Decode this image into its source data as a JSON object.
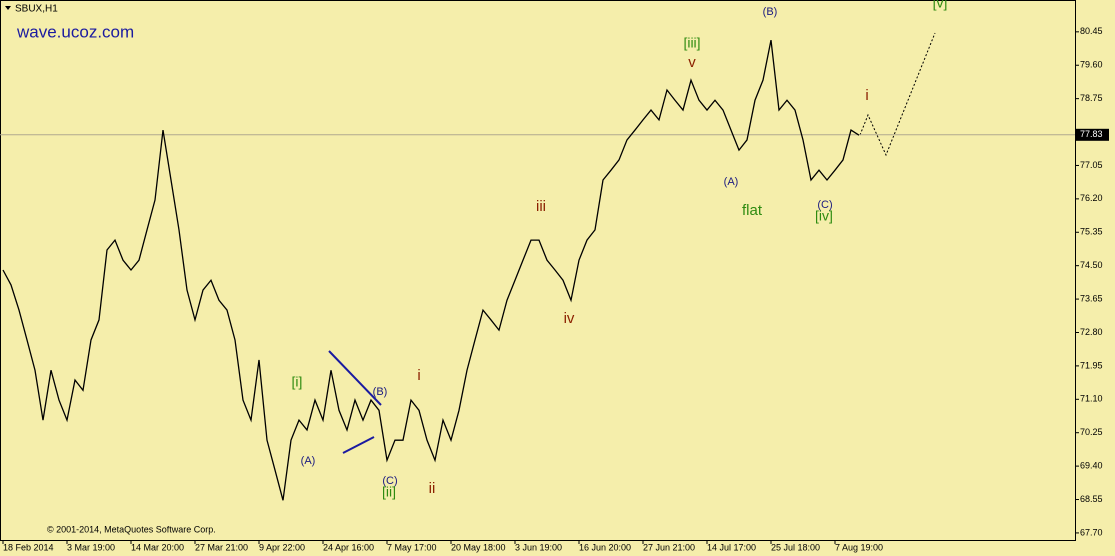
{
  "chart_data": {
    "type": "line",
    "title": "SBUX,H1",
    "watermark": "wave.ucoz.com",
    "copyright": "© 2001-2014, MetaQuotes Software Corp.",
    "categories": [
      "18 Feb 2014",
      null,
      null,
      null,
      null,
      null,
      null,
      null,
      "3 Mar 19:00",
      null,
      null,
      null,
      null,
      null,
      null,
      null,
      "14 Mar 20:00",
      null,
      null,
      null,
      null,
      null,
      null,
      null,
      "27 Mar 21:00",
      null,
      null,
      null,
      null,
      null,
      null,
      null,
      "9 Apr 22:00",
      null,
      null,
      null,
      null,
      null,
      null,
      null,
      "24 Apr 16:00",
      null,
      null,
      null,
      null,
      null,
      null,
      null,
      "7 May 17:00",
      null,
      null,
      null,
      null,
      null,
      null,
      null,
      "20 May 18:00",
      null,
      null,
      null,
      null,
      null,
      null,
      null,
      "3 Jun 19:00",
      null,
      null,
      null,
      null,
      null,
      null,
      null,
      "16 Jun 20:00",
      null,
      null,
      null,
      null,
      null,
      null,
      null,
      "27 Jun 21:00",
      null,
      null,
      null,
      null,
      null,
      null,
      null,
      "14 Jul 17:00",
      null,
      null,
      null,
      null,
      null,
      null,
      null,
      "25 Jul 18:00",
      null,
      null,
      null,
      null,
      null,
      null,
      null,
      "7 Aug 19:00",
      null,
      null,
      null
    ],
    "values": [
      74.39,
      74.01,
      73.37,
      72.61,
      71.84,
      70.57,
      71.84,
      71.08,
      70.57,
      71.59,
      71.33,
      72.61,
      73.12,
      74.9,
      75.15,
      74.64,
      74.39,
      74.64,
      75.41,
      76.17,
      77.95,
      76.68,
      75.41,
      73.88,
      73.12,
      73.88,
      74.13,
      73.62,
      73.37,
      72.61,
      71.08,
      70.57,
      72.1,
      70.06,
      69.3,
      68.53,
      70.06,
      70.57,
      70.32,
      71.08,
      70.57,
      71.84,
      70.82,
      70.32,
      71.08,
      70.57,
      71.08,
      70.82,
      69.55,
      70.06,
      70.06,
      71.08,
      70.82,
      70.06,
      69.55,
      70.57,
      70.06,
      70.82,
      71.84,
      72.61,
      73.37,
      73.12,
      72.86,
      73.62,
      74.13,
      74.64,
      75.15,
      75.15,
      74.64,
      74.39,
      74.13,
      73.62,
      74.64,
      75.15,
      75.41,
      76.68,
      76.93,
      77.19,
      77.7,
      77.95,
      78.21,
      78.46,
      78.21,
      78.97,
      78.71,
      78.46,
      79.22,
      78.71,
      78.46,
      78.71,
      78.46,
      77.95,
      77.44,
      77.7,
      78.71,
      79.22,
      80.24,
      78.46,
      78.71,
      78.46,
      77.7,
      76.68,
      76.93,
      76.68,
      76.93,
      77.19,
      77.95,
      77.82
    ],
    "color": "#000000",
    "ylim": [
      67.52,
      81.26
    ],
    "yticks": [
      80.45,
      {
        "value": 79.6,
        "label": "79.60"
      },
      78.75,
      77.05,
      {
        "value": 76.2,
        "label": "76.20"
      },
      75.35,
      {
        "value": 74.5,
        "label": "74.50"
      },
      73.65,
      {
        "value": 72.8,
        "label": "72.80"
      },
      71.95,
      {
        "value": 71.1,
        "label": "71.10"
      },
      70.25,
      {
        "value": 69.4,
        "label": "69.40"
      },
      68.55,
      {
        "value": 67.7,
        "label": "67.70"
      }
    ],
    "current_price": 77.83,
    "annotations": [
      "[i]",
      "(A)",
      "(B)",
      "(C)",
      "[ii]",
      "i",
      "ii",
      "iii",
      "iv",
      "[iii]",
      "v",
      "(B)",
      "(A)",
      "flat",
      "(C)",
      "[iv]",
      "i",
      "[v]"
    ]
  }
}
